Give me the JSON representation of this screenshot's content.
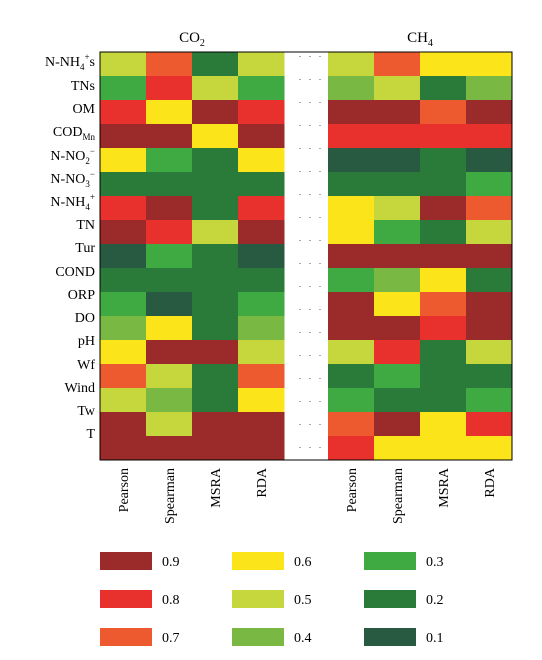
{
  "chart_data": {
    "type": "heatmap",
    "panels": [
      {
        "title": "CO2",
        "columns": [
          "Pearson",
          "Spearman",
          "MSRA",
          "RDA"
        ],
        "values": [
          [
            0.5,
            0.7,
            0.2,
            0.5
          ],
          [
            0.3,
            0.8,
            0.5,
            0.3
          ],
          [
            0.8,
            0.6,
            0.9,
            0.8
          ],
          [
            0.9,
            0.9,
            0.6,
            0.9
          ],
          [
            0.6,
            0.3,
            0.2,
            0.6
          ],
          [
            0.2,
            0.2,
            0.2,
            0.2
          ],
          [
            0.8,
            0.9,
            0.2,
            0.8
          ],
          [
            0.9,
            0.8,
            0.5,
            0.9
          ],
          [
            0.1,
            0.3,
            0.2,
            0.1
          ],
          [
            0.2,
            0.2,
            0.2,
            0.2
          ],
          [
            0.3,
            0.1,
            0.2,
            0.3
          ],
          [
            0.4,
            0.6,
            0.2,
            0.4
          ],
          [
            0.6,
            0.9,
            0.9,
            0.5
          ],
          [
            0.7,
            0.5,
            0.2,
            0.7
          ],
          [
            0.5,
            0.4,
            0.2,
            0.6
          ],
          [
            0.9,
            0.5,
            0.9,
            0.9
          ],
          [
            0.9,
            0.9,
            0.9,
            0.9
          ]
        ]
      },
      {
        "title": "CH4",
        "columns": [
          "Pearson",
          "Spearman",
          "MSRA",
          "RDA"
        ],
        "values": [
          [
            0.5,
            0.7,
            0.6,
            0.6
          ],
          [
            0.4,
            0.5,
            0.2,
            0.4
          ],
          [
            0.9,
            0.9,
            0.7,
            0.9
          ],
          [
            0.8,
            0.8,
            0.8,
            0.8
          ],
          [
            0.1,
            0.1,
            0.2,
            0.1
          ],
          [
            0.2,
            0.2,
            0.2,
            0.3
          ],
          [
            0.6,
            0.5,
            0.9,
            0.7
          ],
          [
            0.6,
            0.3,
            0.2,
            0.5
          ],
          [
            0.9,
            0.9,
            0.9,
            0.9
          ],
          [
            0.3,
            0.4,
            0.6,
            0.2
          ],
          [
            0.9,
            0.6,
            0.7,
            0.9
          ],
          [
            0.9,
            0.9,
            0.8,
            0.9
          ],
          [
            0.5,
            0.8,
            0.2,
            0.5
          ],
          [
            0.2,
            0.3,
            0.2,
            0.2
          ],
          [
            0.3,
            0.2,
            0.2,
            0.3
          ],
          [
            0.7,
            0.9,
            0.6,
            0.8
          ],
          [
            0.8,
            0.6,
            0.6,
            0.6
          ]
        ]
      }
    ],
    "legend": {
      "placement": "bottom",
      "entries": [
        {
          "label": "0.9",
          "value": 0.9,
          "color": "#9b2a2a"
        },
        {
          "label": "0.8",
          "value": 0.8,
          "color": "#e8312d"
        },
        {
          "label": "0.7",
          "value": 0.7,
          "color": "#ed5a30"
        },
        {
          "label": "0.6",
          "value": 0.6,
          "color": "#fbe41a"
        },
        {
          "label": "0.5",
          "value": 0.5,
          "color": "#c6d73d"
        },
        {
          "label": "0.4",
          "value": 0.4,
          "color": "#7ab844"
        },
        {
          "label": "0.3",
          "value": 0.3,
          "color": "#3faa42"
        },
        {
          "label": "0.2",
          "value": 0.2,
          "color": "#2a7a3a"
        },
        {
          "label": "0.1",
          "value": 0.1,
          "color": "#275a40"
        }
      ]
    },
    "grid": false
  }
}
